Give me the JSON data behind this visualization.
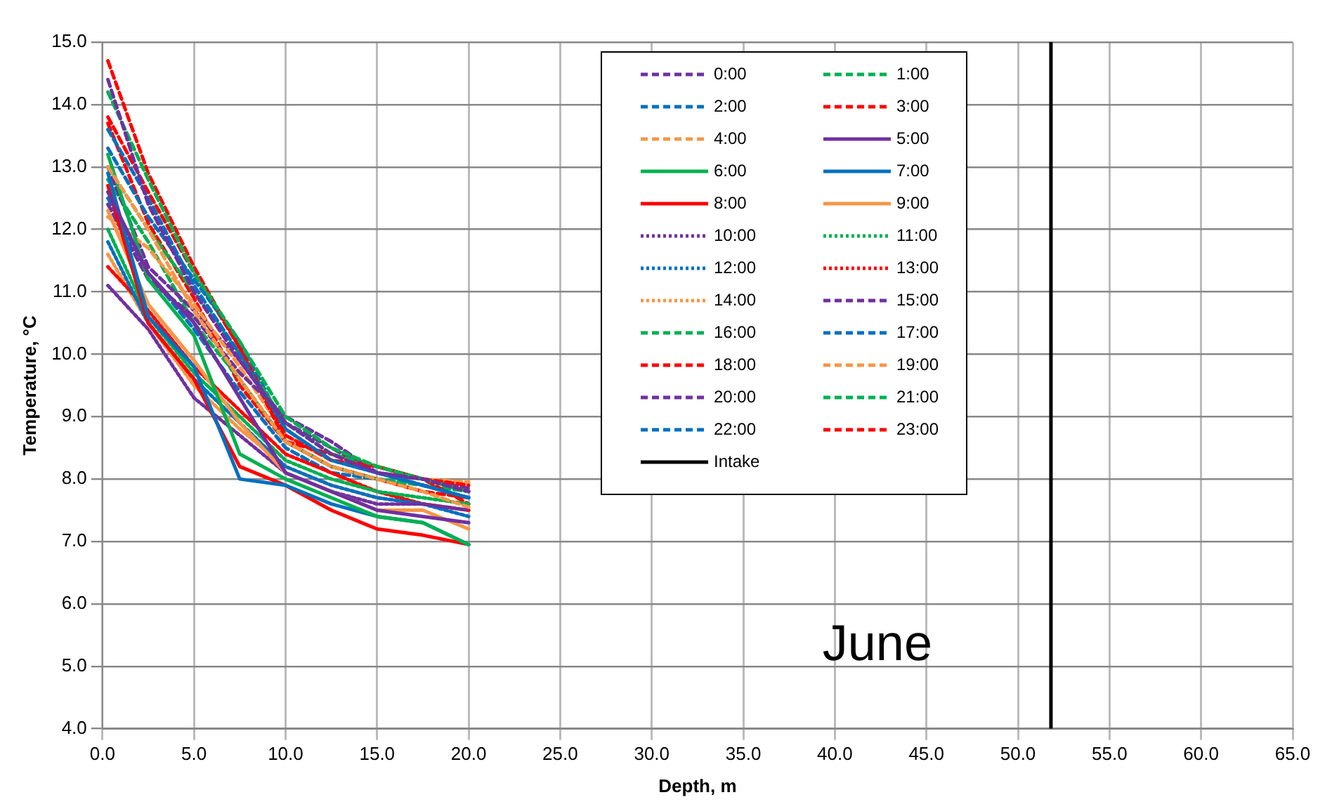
{
  "chart_data": {
    "type": "line",
    "xlabel": "Depth, m",
    "ylabel": "Temperature, °C",
    "annotations": [
      "June"
    ],
    "x": [
      0.3,
      2.5,
      5,
      7.5,
      10,
      12.5,
      15,
      17.5,
      20
    ],
    "xlim": [
      0,
      65
    ],
    "xticks": [
      {
        "value": 0,
        "label": "0.0"
      },
      {
        "value": 5,
        "label": "5.0"
      },
      {
        "value": 10,
        "label": "10.0"
      },
      {
        "value": 15,
        "label": "15.0"
      },
      {
        "value": 20,
        "label": "20.0"
      },
      {
        "value": 25,
        "label": "25.0"
      },
      {
        "value": 30,
        "label": "30.0"
      },
      {
        "value": 35,
        "label": "35.0"
      },
      {
        "value": 40,
        "label": "40.0"
      },
      {
        "value": 45,
        "label": "45.0"
      },
      {
        "value": 50,
        "label": "50.0"
      },
      {
        "value": 55,
        "label": "55.0"
      },
      {
        "value": 60,
        "label": "60.0"
      },
      {
        "value": 65,
        "label": "65.0"
      }
    ],
    "ylim": [
      4,
      15
    ],
    "yticks": [
      {
        "value": 4,
        "label": "4.0"
      },
      {
        "value": 5,
        "label": "5.0"
      },
      {
        "value": 6,
        "label": "6.0"
      },
      {
        "value": 7,
        "label": "7.0"
      },
      {
        "value": 8,
        "label": "8.0"
      },
      {
        "value": 9,
        "label": "9.0"
      },
      {
        "value": 10,
        "label": "10.0"
      },
      {
        "value": 11,
        "label": "11.0"
      },
      {
        "value": 12,
        "label": "12.0"
      },
      {
        "value": 13,
        "label": "13.0"
      },
      {
        "value": 14,
        "label": "14.0"
      },
      {
        "value": 15,
        "label": "15.0"
      }
    ],
    "grid": true,
    "legend": "top right",
    "marker": "none",
    "series": [
      {
        "name": "0:00",
        "color": "#7030a0",
        "line_style": "dashed",
        "values": [
          14.4,
          12.4,
          11.0,
          9.9,
          8.9,
          8.4,
          8.1,
          8.0,
          7.8
        ]
      },
      {
        "name": "1:00",
        "color": "#00b050",
        "line_style": "dashed",
        "values": [
          14.2,
          12.8,
          11.3,
          10.2,
          9.0,
          8.5,
          8.2,
          8.0,
          7.8
        ]
      },
      {
        "name": "2:00",
        "color": "#0070c0",
        "line_style": "dashed",
        "values": [
          13.6,
          12.5,
          11.1,
          10.0,
          8.8,
          8.3,
          8.1,
          7.9,
          7.7
        ]
      },
      {
        "name": "3:00",
        "color": "#ff0000",
        "line_style": "dashed",
        "values": [
          14.7,
          12.9,
          11.4,
          10.1,
          8.7,
          8.3,
          8.2,
          8.0,
          7.9
        ]
      },
      {
        "name": "4:00",
        "color": "#f79646",
        "line_style": "dashed",
        "values": [
          13.0,
          12.0,
          10.7,
          9.6,
          8.6,
          8.2,
          8.0,
          7.8,
          7.55
        ]
      },
      {
        "name": "5:00",
        "color": "#7030a0",
        "line_style": "solid",
        "values": [
          12.6,
          11.3,
          10.5,
          9.3,
          8.1,
          7.8,
          7.5,
          7.4,
          7.3
        ]
      },
      {
        "name": "6:00",
        "color": "#00b050",
        "line_style": "solid",
        "values": [
          13.2,
          11.2,
          10.3,
          8.4,
          8.0,
          7.7,
          7.4,
          7.3,
          6.95
        ]
      },
      {
        "name": "7:00",
        "color": "#0070c0",
        "line_style": "solid",
        "values": [
          12.9,
          10.6,
          9.8,
          8.0,
          7.9,
          7.6,
          7.4,
          7.3,
          6.95
        ]
      },
      {
        "name": "8:00",
        "color": "#ff0000",
        "line_style": "solid",
        "values": [
          12.7,
          10.5,
          9.6,
          8.2,
          7.9,
          7.5,
          7.2,
          7.1,
          6.95
        ]
      },
      {
        "name": "9:00",
        "color": "#f79646",
        "line_style": "solid",
        "values": [
          12.3,
          10.8,
          9.9,
          8.9,
          8.1,
          7.8,
          7.5,
          7.5,
          7.2
        ]
      },
      {
        "name": "10:00",
        "color": "#7030a0",
        "line_style": "dotted",
        "values": [
          11.1,
          10.4,
          9.3,
          8.7,
          8.1,
          7.8,
          7.6,
          7.6,
          7.5
        ]
      },
      {
        "name": "11:00",
        "color": "#00b050",
        "line_style": "dotted",
        "values": [
          12.0,
          10.6,
          9.7,
          9.0,
          8.3,
          8.0,
          7.8,
          7.7,
          7.6
        ]
      },
      {
        "name": "12:00",
        "color": "#0070c0",
        "line_style": "dotted",
        "values": [
          11.8,
          10.5,
          9.6,
          8.9,
          8.2,
          7.9,
          7.7,
          7.6,
          7.4
        ]
      },
      {
        "name": "13:00",
        "color": "#ff0000",
        "line_style": "dotted",
        "values": [
          11.4,
          10.7,
          9.8,
          9.1,
          8.4,
          8.1,
          7.8,
          7.6,
          7.5
        ]
      },
      {
        "name": "14:00",
        "color": "#f79646",
        "line_style": "dotted",
        "values": [
          11.6,
          10.5,
          9.5,
          8.8,
          8.2,
          7.9,
          7.7,
          7.6,
          7.5
        ]
      },
      {
        "name": "15:00",
        "color": "#7030a0",
        "line_style": "dashed",
        "values": [
          12.4,
          11.2,
          10.6,
          9.7,
          9.0,
          8.6,
          8.1,
          8.0,
          7.8
        ]
      },
      {
        "name": "16:00",
        "color": "#00b050",
        "line_style": "dashed",
        "values": [
          13.0,
          12.0,
          11.0,
          10.0,
          8.9,
          8.4,
          8.2,
          8.0,
          7.8
        ]
      },
      {
        "name": "17:00",
        "color": "#0070c0",
        "line_style": "dashed",
        "values": [
          13.3,
          12.2,
          11.2,
          10.2,
          8.8,
          8.3,
          8.1,
          7.9,
          7.7
        ]
      },
      {
        "name": "18:00",
        "color": "#ff0000",
        "line_style": "dashed",
        "values": [
          13.8,
          12.6,
          11.3,
          10.1,
          8.6,
          8.4,
          8.2,
          8.0,
          7.6
        ]
      },
      {
        "name": "19:00",
        "color": "#f79646",
        "line_style": "dashed",
        "values": [
          12.2,
          11.7,
          10.8,
          9.8,
          8.7,
          8.3,
          8.2,
          8.0,
          7.95
        ]
      },
      {
        "name": "20:00",
        "color": "#7030a0",
        "line_style": "dashed",
        "values": [
          13.0,
          11.4,
          10.7,
          9.9,
          8.9,
          8.5,
          8.1,
          8.0,
          7.85
        ]
      },
      {
        "name": "21:00",
        "color": "#00b050",
        "line_style": "dashed",
        "values": [
          12.8,
          11.8,
          10.5,
          9.6,
          8.6,
          8.2,
          8.0,
          7.9,
          7.8
        ]
      },
      {
        "name": "22:00",
        "color": "#0070c0",
        "line_style": "dashed",
        "values": [
          12.5,
          11.3,
          10.4,
          9.4,
          8.5,
          8.1,
          8.0,
          7.9,
          7.7
        ]
      },
      {
        "name": "23:00",
        "color": "#ff0000",
        "line_style": "dashed",
        "values": [
          13.7,
          12.1,
          10.9,
          9.5,
          8.6,
          8.2,
          8.0,
          7.8,
          7.7
        ]
      },
      {
        "name": "Intake",
        "color": "#000000",
        "line_style": "solid",
        "x": [
          51.8,
          51.8
        ],
        "values": [
          4,
          15
        ]
      }
    ]
  }
}
